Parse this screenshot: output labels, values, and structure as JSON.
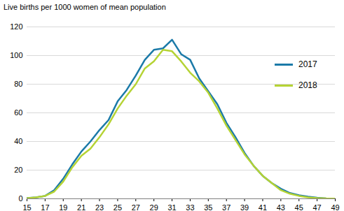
{
  "chart_data": {
    "type": "line",
    "title": "Live births per 1000 women of mean population",
    "x": [
      15,
      16,
      17,
      18,
      19,
      20,
      21,
      22,
      23,
      24,
      25,
      26,
      27,
      28,
      29,
      30,
      31,
      32,
      33,
      34,
      35,
      36,
      37,
      38,
      39,
      40,
      41,
      42,
      43,
      44,
      45,
      46,
      47,
      48,
      49
    ],
    "series": [
      {
        "name": "2017",
        "color": "#1b7aa8",
        "values": [
          0.5,
          1,
          2,
          6,
          14,
          24,
          33,
          40,
          48,
          55,
          68,
          76,
          86,
          97,
          104,
          105,
          111,
          101,
          97,
          84,
          75,
          66,
          53,
          43,
          32,
          23,
          16,
          11,
          7,
          4,
          2.5,
          1.5,
          0.7,
          0.3,
          0.1
        ]
      },
      {
        "name": "2018",
        "color": "#b5d334",
        "values": [
          0.4,
          1,
          2,
          5,
          12,
          22,
          30,
          35,
          43,
          52,
          63,
          72,
          80,
          91,
          96,
          104,
          103,
          96,
          88,
          82,
          74,
          63,
          51,
          41,
          31,
          23,
          16,
          11,
          6,
          3.5,
          2,
          1,
          0.5,
          0.2,
          0.1
        ]
      }
    ],
    "xlim": [
      15,
      49
    ],
    "xticks": [
      15,
      17,
      19,
      21,
      23,
      25,
      27,
      29,
      31,
      33,
      35,
      37,
      39,
      41,
      43,
      45,
      47,
      49
    ],
    "ylim": [
      0,
      120
    ],
    "yticks": [
      0,
      20,
      40,
      60,
      80,
      100,
      120
    ],
    "grid": true,
    "legend": "top-right"
  }
}
